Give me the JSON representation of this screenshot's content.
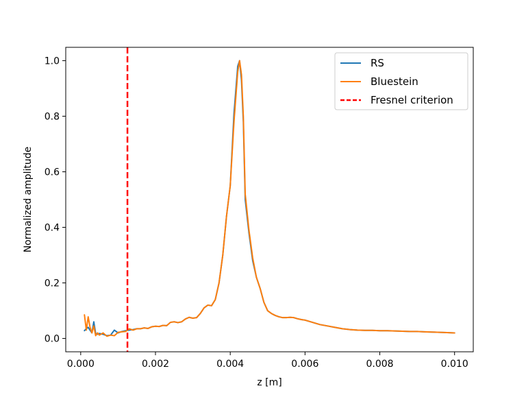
{
  "chart_data": {
    "type": "line",
    "xlabel": "z [m]",
    "ylabel": "Normalized amplitude",
    "xlim": [
      -0.0004,
      0.0105
    ],
    "ylim": [
      -0.048,
      1.048
    ],
    "xticks": [
      0.0,
      0.002,
      0.004,
      0.006,
      0.008,
      0.01
    ],
    "xtick_labels": [
      "0.000",
      "0.002",
      "0.004",
      "0.006",
      "0.008",
      "0.010"
    ],
    "yticks": [
      0.0,
      0.2,
      0.4,
      0.6,
      0.8,
      1.0
    ],
    "ytick_labels": [
      "0.0",
      "0.2",
      "0.4",
      "0.6",
      "0.8",
      "1.0"
    ],
    "grid": false,
    "legend_position": "top-right",
    "series": [
      {
        "name": "RS",
        "color": "#1f77b4",
        "style": "solid",
        "x": [
          0.0001,
          0.00015,
          0.0002,
          0.00025,
          0.0003,
          0.00035,
          0.0004,
          0.00045,
          0.0005,
          0.0006,
          0.0007,
          0.0008,
          0.0009,
          0.001,
          0.0011,
          0.0012,
          0.0013,
          0.0014,
          0.0015,
          0.0016,
          0.0017,
          0.0018,
          0.0019,
          0.002,
          0.0021,
          0.0022,
          0.0023,
          0.0024,
          0.0025,
          0.0026,
          0.0027,
          0.0028,
          0.0029,
          0.003,
          0.0031,
          0.0032,
          0.0033,
          0.0034,
          0.0035,
          0.0036,
          0.0037,
          0.0038,
          0.0039,
          0.004,
          0.0041,
          0.0042,
          0.00425,
          0.0043,
          0.00435,
          0.0044,
          0.0045,
          0.0046,
          0.0047,
          0.0048,
          0.0049,
          0.005,
          0.0051,
          0.0052,
          0.0053,
          0.0054,
          0.0055,
          0.0056,
          0.0057,
          0.0058,
          0.0059,
          0.006,
          0.0062,
          0.0064,
          0.0066,
          0.0068,
          0.007,
          0.0072,
          0.0074,
          0.0076,
          0.0078,
          0.008,
          0.0082,
          0.0084,
          0.0086,
          0.0088,
          0.009,
          0.0092,
          0.0094,
          0.0096,
          0.0098,
          0.01
        ],
        "y": [
          0.028,
          0.035,
          0.04,
          0.03,
          0.02,
          0.06,
          0.018,
          0.015,
          0.018,
          0.015,
          0.01,
          0.012,
          0.03,
          0.02,
          0.025,
          0.028,
          0.03,
          0.032,
          0.035,
          0.035,
          0.038,
          0.036,
          0.042,
          0.044,
          0.043,
          0.047,
          0.046,
          0.058,
          0.06,
          0.057,
          0.06,
          0.07,
          0.076,
          0.073,
          0.075,
          0.09,
          0.11,
          0.12,
          0.118,
          0.14,
          0.2,
          0.3,
          0.44,
          0.55,
          0.81,
          0.98,
          1.0,
          0.93,
          0.78,
          0.5,
          0.38,
          0.28,
          0.22,
          0.18,
          0.13,
          0.1,
          0.09,
          0.083,
          0.078,
          0.075,
          0.075,
          0.076,
          0.075,
          0.071,
          0.068,
          0.066,
          0.058,
          0.05,
          0.045,
          0.04,
          0.035,
          0.032,
          0.03,
          0.029,
          0.029,
          0.028,
          0.028,
          0.027,
          0.026,
          0.025,
          0.025,
          0.024,
          0.023,
          0.022,
          0.021,
          0.02
        ]
      },
      {
        "name": "Bluestein",
        "color": "#ff7f0e",
        "style": "solid",
        "x": [
          0.0001,
          0.00015,
          0.0002,
          0.00025,
          0.0003,
          0.00035,
          0.0004,
          0.00045,
          0.0005,
          0.0006,
          0.0007,
          0.0008,
          0.0009,
          0.001,
          0.0011,
          0.0012,
          0.0013,
          0.0014,
          0.0015,
          0.0016,
          0.0017,
          0.0018,
          0.0019,
          0.002,
          0.0021,
          0.0022,
          0.0023,
          0.0024,
          0.0025,
          0.0026,
          0.0027,
          0.0028,
          0.0029,
          0.003,
          0.0031,
          0.0032,
          0.0033,
          0.0034,
          0.0035,
          0.0036,
          0.0037,
          0.0038,
          0.0039,
          0.004,
          0.0041,
          0.0042,
          0.00425,
          0.0043,
          0.00435,
          0.0044,
          0.0045,
          0.0046,
          0.0047,
          0.0048,
          0.0049,
          0.005,
          0.0051,
          0.0052,
          0.0053,
          0.0054,
          0.0055,
          0.0056,
          0.0057,
          0.0058,
          0.0059,
          0.006,
          0.0062,
          0.0064,
          0.0066,
          0.0068,
          0.007,
          0.0072,
          0.0074,
          0.0076,
          0.0078,
          0.008,
          0.0082,
          0.0084,
          0.0086,
          0.0088,
          0.009,
          0.0092,
          0.0094,
          0.0096,
          0.0098,
          0.01
        ],
        "y": [
          0.085,
          0.03,
          0.078,
          0.04,
          0.02,
          0.045,
          0.01,
          0.02,
          0.012,
          0.02,
          0.008,
          0.012,
          0.01,
          0.022,
          0.024,
          0.025,
          0.035,
          0.03,
          0.035,
          0.035,
          0.038,
          0.036,
          0.042,
          0.044,
          0.043,
          0.047,
          0.046,
          0.058,
          0.06,
          0.057,
          0.06,
          0.07,
          0.076,
          0.073,
          0.075,
          0.09,
          0.11,
          0.12,
          0.118,
          0.14,
          0.2,
          0.3,
          0.44,
          0.55,
          0.78,
          0.96,
          1.0,
          0.95,
          0.8,
          0.52,
          0.39,
          0.29,
          0.22,
          0.18,
          0.13,
          0.1,
          0.09,
          0.083,
          0.078,
          0.075,
          0.075,
          0.076,
          0.075,
          0.071,
          0.068,
          0.066,
          0.058,
          0.05,
          0.045,
          0.04,
          0.035,
          0.032,
          0.03,
          0.029,
          0.029,
          0.028,
          0.028,
          0.027,
          0.026,
          0.025,
          0.025,
          0.024,
          0.023,
          0.022,
          0.021,
          0.02
        ]
      }
    ],
    "vlines": [
      {
        "name": "Fresnel criterion",
        "x": 0.00125,
        "color": "#ff0000",
        "style": "dashed"
      }
    ]
  }
}
